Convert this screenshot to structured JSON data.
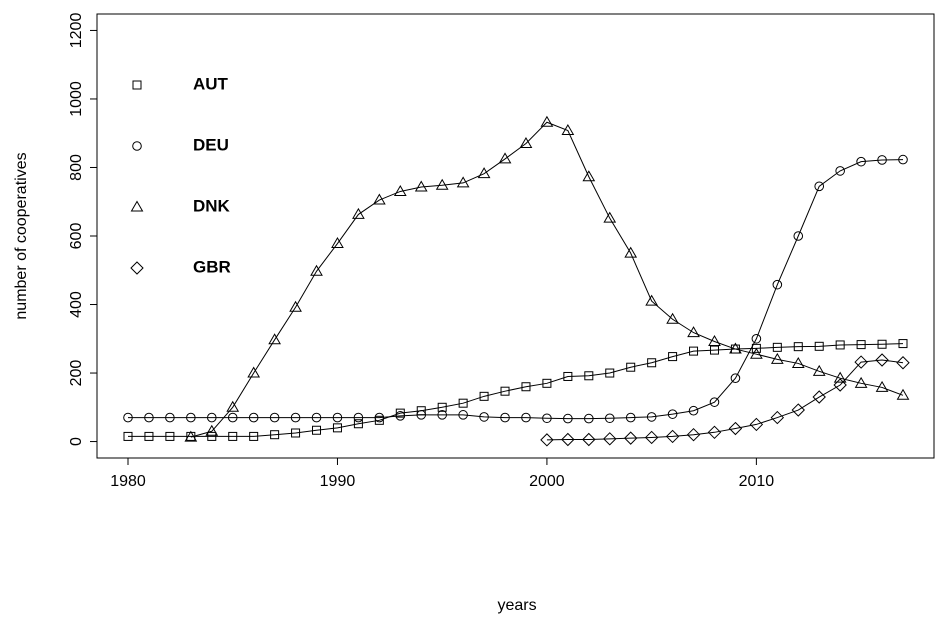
{
  "chart_data": {
    "type": "line",
    "x_label": "years",
    "y_label": "number of cooperatives",
    "x": [
      1980,
      1981,
      1982,
      1983,
      1984,
      1985,
      1986,
      1987,
      1988,
      1989,
      1990,
      1991,
      1992,
      1993,
      1994,
      1995,
      1996,
      1997,
      1998,
      1999,
      2000,
      2001,
      2002,
      2003,
      2004,
      2005,
      2006,
      2007,
      2008,
      2009,
      2010,
      2011,
      2012,
      2013,
      2014,
      2015,
      2016,
      2017
    ],
    "series": [
      {
        "name": "AUT",
        "color": "#000000",
        "marker": "square",
        "values": [
          15,
          15,
          15,
          15,
          15,
          15,
          15,
          20,
          25,
          33,
          40,
          52,
          62,
          83,
          90,
          100,
          112,
          132,
          147,
          160,
          170,
          190,
          192,
          200,
          217,
          230,
          248,
          264,
          267,
          270,
          272,
          275,
          277,
          278,
          282,
          283,
          284,
          286
        ]
      },
      {
        "name": "DEU",
        "color": "#000000",
        "marker": "circle",
        "values": [
          70,
          70,
          70,
          70,
          70,
          70,
          70,
          70,
          70,
          70,
          70,
          70,
          70,
          75,
          78,
          78,
          78,
          72,
          70,
          70,
          68,
          67,
          67,
          68,
          70,
          72,
          80,
          90,
          115,
          185,
          300,
          458,
          600,
          745,
          790,
          817,
          822,
          823
        ]
      },
      {
        "name": "DNK",
        "color": "#000000",
        "marker": "triangle",
        "values": [
          null,
          null,
          null,
          13,
          30,
          100,
          200,
          297,
          392,
          497,
          578,
          663,
          705,
          730,
          743,
          748,
          755,
          782,
          825,
          870,
          932,
          908,
          773,
          652,
          550,
          410,
          357,
          318,
          292,
          270,
          255,
          240,
          228,
          205,
          185,
          170,
          158,
          135
        ]
      },
      {
        "name": "GBR",
        "color": "#000000",
        "marker": "diamond",
        "values": [
          null,
          null,
          null,
          null,
          null,
          null,
          null,
          null,
          null,
          null,
          null,
          null,
          null,
          null,
          null,
          null,
          null,
          null,
          null,
          null,
          5,
          6,
          6,
          8,
          10,
          12,
          15,
          20,
          27,
          38,
          50,
          70,
          92,
          130,
          165,
          232,
          238,
          230
        ]
      }
    ],
    "xlim": [
      1978.52,
      2018.48
    ],
    "xticks": [
      1980,
      1990,
      2000,
      2010
    ],
    "ylim": [
      -48,
      1248
    ],
    "yticks": [
      0,
      200,
      400,
      600,
      800,
      1000,
      1200
    ],
    "legend": "topleft"
  }
}
